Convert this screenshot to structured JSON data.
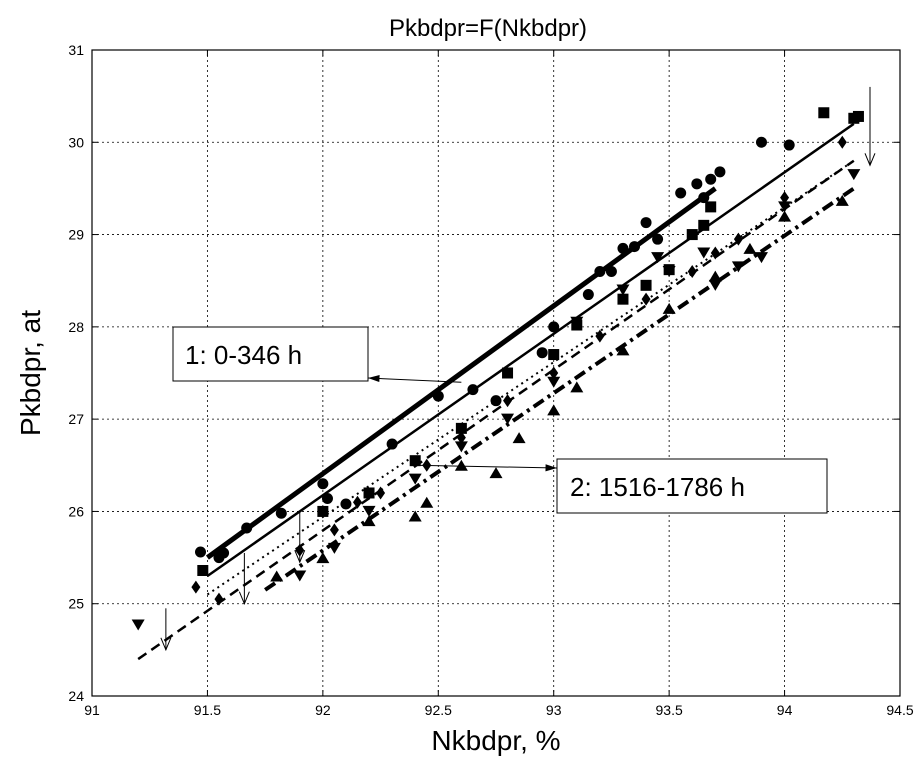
{
  "chart_data": {
    "type": "scatter",
    "title": "Pkbdpr=F(Nkbdpr)",
    "xlabel": "Nkbdpr, %",
    "ylabel": "Pkbdpr, at",
    "xlim": [
      91,
      94.5
    ],
    "ylim": [
      24,
      31
    ],
    "xticks": [
      "91",
      "91.5",
      "92",
      "92.5",
      "93",
      "93.5",
      "94",
      "94.5"
    ],
    "yticks": [
      "24",
      "25",
      "26",
      "27",
      "28",
      "29",
      "30",
      "31"
    ],
    "grid": true,
    "annotations": [
      {
        "text": "1: 0-346 h",
        "target": [
          92.6,
          27.4
        ]
      },
      {
        "text": "2: 1516-1786 h",
        "target": [
          92.4,
          26.5
        ]
      }
    ],
    "series": [
      {
        "marker": "circle",
        "line": "solid-thick",
        "fit": [
          [
            91.5,
            25.5
          ],
          [
            93.7,
            29.5
          ]
        ],
        "points": [
          [
            91.47,
            25.56
          ],
          [
            91.55,
            25.5
          ],
          [
            91.57,
            25.55
          ],
          [
            91.67,
            25.82
          ],
          [
            91.82,
            25.98
          ],
          [
            92,
            26.3
          ],
          [
            92.02,
            26.14
          ],
          [
            92.1,
            26.08
          ],
          [
            92.3,
            26.73
          ],
          [
            92.5,
            27.25
          ],
          [
            92.65,
            27.32
          ],
          [
            92.75,
            27.2
          ],
          [
            92.95,
            27.72
          ],
          [
            93.0,
            28.0
          ],
          [
            93.15,
            28.35
          ],
          [
            93.2,
            28.6
          ],
          [
            93.25,
            28.6
          ],
          [
            93.3,
            28.85
          ],
          [
            93.35,
            28.87
          ],
          [
            93.4,
            29.13
          ],
          [
            93.45,
            28.95
          ],
          [
            93.55,
            29.45
          ],
          [
            93.62,
            29.55
          ],
          [
            93.65,
            29.4
          ],
          [
            93.68,
            29.6
          ],
          [
            93.72,
            29.68
          ],
          [
            93.9,
            30.0
          ],
          [
            94.02,
            29.97
          ]
        ]
      },
      {
        "marker": "square",
        "line": "solid",
        "fit": [
          [
            91.5,
            25.3
          ],
          [
            94.3,
            30.2
          ]
        ],
        "points": [
          [
            91.48,
            25.36
          ],
          [
            92.0,
            26.0
          ],
          [
            92.2,
            26.2
          ],
          [
            92.4,
            26.55
          ],
          [
            92.6,
            26.9
          ],
          [
            92.8,
            27.5
          ],
          [
            93.0,
            27.7
          ],
          [
            93.1,
            28.02
          ],
          [
            93.3,
            28.3
          ],
          [
            93.4,
            28.45
          ],
          [
            93.5,
            28.62
          ],
          [
            93.6,
            29.0
          ],
          [
            93.65,
            29.1
          ],
          [
            93.68,
            29.3
          ],
          [
            94.17,
            30.32
          ],
          [
            94.3,
            30.26
          ],
          [
            94.32,
            30.28
          ]
        ]
      },
      {
        "marker": "diamond",
        "line": "dotted",
        "fit": [
          [
            91.5,
            25.1
          ],
          [
            94.3,
            29.8
          ]
        ],
        "points": [
          [
            91.45,
            25.18
          ],
          [
            91.55,
            25.05
          ],
          [
            91.9,
            25.58
          ],
          [
            92.05,
            25.8
          ],
          [
            92.15,
            26.1
          ],
          [
            92.25,
            26.2
          ],
          [
            92.45,
            26.5
          ],
          [
            92.6,
            26.8
          ],
          [
            92.8,
            27.2
          ],
          [
            93.0,
            27.5
          ],
          [
            93.2,
            27.9
          ],
          [
            93.4,
            28.3
          ],
          [
            93.6,
            28.6
          ],
          [
            93.7,
            28.8
          ],
          [
            93.8,
            28.95
          ],
          [
            94.0,
            29.4
          ],
          [
            94.25,
            30.0
          ]
        ]
      },
      {
        "marker": "triangle-down",
        "line": "dashed",
        "fit": [
          [
            91.2,
            24.4
          ],
          [
            94.3,
            29.8
          ]
        ],
        "points": [
          [
            91.2,
            24.77
          ],
          [
            91.9,
            25.3
          ],
          [
            92.05,
            25.6
          ],
          [
            92.2,
            26.0
          ],
          [
            92.4,
            26.35
          ],
          [
            92.6,
            26.7
          ],
          [
            92.8,
            27.0
          ],
          [
            93.0,
            27.4
          ],
          [
            93.1,
            28.05
          ],
          [
            93.3,
            28.4
          ],
          [
            93.45,
            28.75
          ],
          [
            93.5,
            28.6
          ],
          [
            93.65,
            28.8
          ],
          [
            93.7,
            28.45
          ],
          [
            93.8,
            28.65
          ],
          [
            93.9,
            28.75
          ],
          [
            94.0,
            29.3
          ],
          [
            94.3,
            29.65
          ]
        ]
      },
      {
        "marker": "triangle-up",
        "line": "dash-dot",
        "fit": [
          [
            91.75,
            25.15
          ],
          [
            94.3,
            29.5
          ]
        ],
        "points": [
          [
            91.8,
            25.3
          ],
          [
            92.0,
            25.5
          ],
          [
            92.2,
            25.9
          ],
          [
            92.4,
            25.95
          ],
          [
            92.45,
            26.1
          ],
          [
            92.6,
            26.5
          ],
          [
            92.75,
            26.42
          ],
          [
            92.85,
            26.8
          ],
          [
            93.0,
            27.1
          ],
          [
            93.1,
            27.35
          ],
          [
            93.3,
            27.75
          ],
          [
            93.5,
            28.2
          ],
          [
            93.7,
            28.55
          ],
          [
            93.85,
            28.85
          ],
          [
            94.0,
            29.2
          ],
          [
            94.25,
            29.37
          ]
        ]
      }
    ]
  }
}
